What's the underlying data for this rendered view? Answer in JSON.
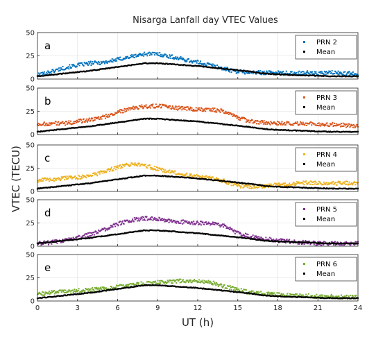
{
  "chart_data": {
    "type": "scatter",
    "title": "Nisarga Lanfall day VTEC Values",
    "xlabel": "UT (h)",
    "ylabel": "VTEC (TECU)",
    "xlim": [
      0,
      24
    ],
    "xticks": [
      "0",
      "3",
      "6",
      "9",
      "12",
      "15",
      "18",
      "21",
      "24"
    ],
    "ylim": [
      0,
      50
    ],
    "yticks": [
      "0",
      "25",
      "50"
    ],
    "grid": true,
    "legend_placement": "top-right",
    "mean_series": {
      "name": "Mean",
      "color": "#000000",
      "x": [
        0,
        2,
        4,
        6,
        7,
        8,
        9,
        10,
        12,
        14,
        16,
        17,
        18,
        20,
        22,
        24
      ],
      "y": [
        3,
        6,
        9,
        13,
        15,
        17,
        17,
        16,
        14,
        11,
        8,
        6,
        5,
        4,
        3,
        3
      ]
    },
    "panels": [
      {
        "letter": "a",
        "series": {
          "name": "PRN 2",
          "color": "#0072BD",
          "x": [
            0,
            1,
            2,
            3,
            4,
            5,
            6,
            7,
            8,
            9,
            10,
            11,
            12,
            13,
            14,
            15,
            16,
            17,
            18,
            19,
            20,
            21,
            22,
            23,
            24
          ],
          "y": [
            4,
            8,
            12,
            15,
            17,
            18,
            21,
            24,
            27,
            27,
            24,
            21,
            18,
            15,
            11,
            8,
            7,
            7,
            7,
            6,
            7,
            6,
            7,
            6,
            6
          ]
        }
      },
      {
        "letter": "b",
        "series": {
          "name": "PRN 3",
          "color": "#D95319",
          "x": [
            0,
            1,
            2,
            3,
            4,
            5,
            6,
            7,
            8,
            9,
            10,
            11,
            12,
            13,
            14,
            15,
            16,
            17,
            18,
            19,
            20,
            21,
            22,
            23,
            24
          ],
          "y": [
            11,
            12,
            12,
            14,
            16,
            19,
            24,
            28,
            30,
            31,
            29,
            28,
            27,
            27,
            25,
            18,
            14,
            13,
            12,
            12,
            12,
            11,
            11,
            10,
            9
          ]
        }
      },
      {
        "letter": "c",
        "series": {
          "name": "PRN 4",
          "color": "#EDB120",
          "x": [
            0,
            1,
            2,
            3,
            4,
            5,
            6,
            7,
            8,
            9,
            10,
            11,
            12,
            13,
            14,
            15,
            16,
            17,
            18,
            19,
            20,
            21,
            22,
            23,
            24
          ],
          "y": [
            12,
            13,
            14,
            15,
            17,
            21,
            26,
            29,
            28,
            24,
            21,
            18,
            16,
            14,
            11,
            6,
            5,
            6,
            7,
            8,
            9,
            9,
            9,
            9,
            9
          ]
        }
      },
      {
        "letter": "d",
        "series": {
          "name": "PRN 5",
          "color": "#7E2F8E",
          "x": [
            0,
            1,
            2,
            3,
            4,
            5,
            6,
            7,
            8,
            9,
            10,
            11,
            12,
            13,
            14,
            15,
            16,
            17,
            18,
            19,
            20,
            21,
            22,
            23,
            24
          ],
          "y": [
            3,
            4,
            6,
            9,
            13,
            18,
            24,
            28,
            30,
            29,
            27,
            26,
            25,
            24,
            22,
            14,
            10,
            8,
            6,
            5,
            4,
            3,
            3,
            3,
            3
          ]
        }
      },
      {
        "letter": "e",
        "series": {
          "name": "PRN 6",
          "color": "#77AC30",
          "x": [
            0,
            1,
            2,
            3,
            4,
            5,
            6,
            7,
            8,
            9,
            10,
            11,
            12,
            13,
            14,
            15,
            16,
            17,
            18,
            19,
            20,
            21,
            22,
            23,
            24
          ],
          "y": [
            7,
            9,
            10,
            11,
            12,
            13,
            15,
            17,
            19,
            20,
            21,
            22,
            21,
            20,
            16,
            12,
            9,
            8,
            7,
            6,
            6,
            5,
            5,
            4,
            4
          ]
        }
      }
    ]
  }
}
